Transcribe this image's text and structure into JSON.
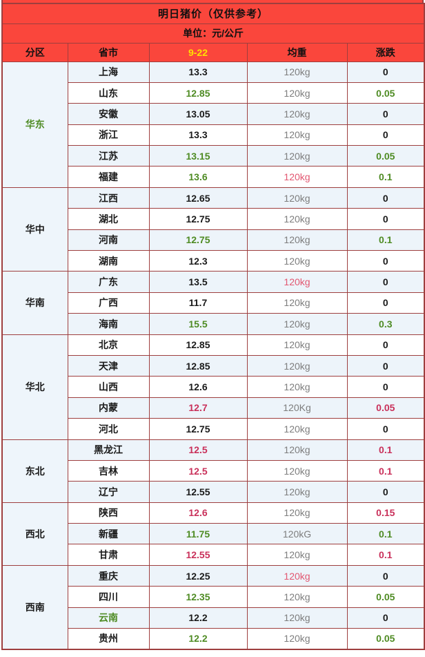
{
  "colors": {
    "header_bg": "#fa463c",
    "border": "#9e3e3e",
    "title_text": "#111111",
    "date_text_yellow": "#ffe100",
    "green_text": "#4e8b23",
    "red_text": "#c9305a",
    "pink_text": "#e25670",
    "gray_text": "#7d7d7d",
    "row_alt_bg": "#edf4fa",
    "row_bg": "#ffffff"
  },
  "chart_data": {
    "type": "table",
    "title": "明日猪价（仅供参考）",
    "subtitle": "单位：元/公斤",
    "columns": [
      "分区",
      "省市",
      "9-22",
      "均重",
      "涨跌"
    ],
    "regions": [
      {
        "name": "华东",
        "name_color": "green",
        "rows": [
          {
            "province": "上海",
            "province_color": "black",
            "price": "13.3",
            "price_color": "black",
            "weight": "120kg",
            "weight_color": "gray",
            "change": "0",
            "change_color": "black"
          },
          {
            "province": "山东",
            "province_color": "black",
            "price": "12.85",
            "price_color": "green",
            "weight": "120kg",
            "weight_color": "gray",
            "change": "0.05",
            "change_color": "green"
          },
          {
            "province": "安徽",
            "province_color": "black",
            "price": "13.05",
            "price_color": "black",
            "weight": "120kg",
            "weight_color": "gray",
            "change": "0",
            "change_color": "black"
          },
          {
            "province": "浙江",
            "province_color": "black",
            "price": "13.3",
            "price_color": "black",
            "weight": "120kg",
            "weight_color": "gray",
            "change": "0",
            "change_color": "black"
          },
          {
            "province": "江苏",
            "province_color": "black",
            "price": "13.15",
            "price_color": "green",
            "weight": "120kg",
            "weight_color": "gray",
            "change": "0.05",
            "change_color": "green"
          },
          {
            "province": "福建",
            "province_color": "black",
            "price": "13.6",
            "price_color": "green",
            "weight": "120kg",
            "weight_color": "pink",
            "change": "0.1",
            "change_color": "green"
          }
        ]
      },
      {
        "name": "华中",
        "name_color": "black",
        "rows": [
          {
            "province": "江西",
            "province_color": "black",
            "price": "12.65",
            "price_color": "black",
            "weight": "120kg",
            "weight_color": "gray",
            "change": "0",
            "change_color": "black"
          },
          {
            "province": "湖北",
            "province_color": "black",
            "price": "12.75",
            "price_color": "black",
            "weight": "120kg",
            "weight_color": "gray",
            "change": "0",
            "change_color": "black"
          },
          {
            "province": "河南",
            "province_color": "black",
            "price": "12.75",
            "price_color": "green",
            "weight": "120kg",
            "weight_color": "gray",
            "change": "0.1",
            "change_color": "green"
          },
          {
            "province": "湖南",
            "province_color": "black",
            "price": "12.3",
            "price_color": "black",
            "weight": "120kg",
            "weight_color": "gray",
            "change": "0",
            "change_color": "black"
          }
        ]
      },
      {
        "name": "华南",
        "name_color": "black",
        "rows": [
          {
            "province": "广东",
            "province_color": "black",
            "price": "13.5",
            "price_color": "black",
            "weight": "120kg",
            "weight_color": "pink",
            "change": "0",
            "change_color": "black"
          },
          {
            "province": "广西",
            "province_color": "black",
            "price": "11.7",
            "price_color": "black",
            "weight": "120kg",
            "weight_color": "gray",
            "change": "0",
            "change_color": "black"
          },
          {
            "province": "海南",
            "province_color": "black",
            "price": "15.5",
            "price_color": "green",
            "weight": "120kg",
            "weight_color": "gray",
            "change": "0.3",
            "change_color": "green"
          }
        ]
      },
      {
        "name": "华北",
        "name_color": "black",
        "rows": [
          {
            "province": "北京",
            "province_color": "black",
            "price": "12.85",
            "price_color": "black",
            "weight": "120kg",
            "weight_color": "gray",
            "change": "0",
            "change_color": "black"
          },
          {
            "province": "天津",
            "province_color": "black",
            "price": "12.85",
            "price_color": "black",
            "weight": "120kg",
            "weight_color": "gray",
            "change": "0",
            "change_color": "black"
          },
          {
            "province": "山西",
            "province_color": "black",
            "price": "12.6",
            "price_color": "black",
            "weight": "120kg",
            "weight_color": "gray",
            "change": "0",
            "change_color": "black"
          },
          {
            "province": "内蒙",
            "province_color": "black",
            "price": "12.7",
            "price_color": "red",
            "weight": "120Kg",
            "weight_color": "gray",
            "change": "0.05",
            "change_color": "red"
          },
          {
            "province": "河北",
            "province_color": "black",
            "price": "12.75",
            "price_color": "black",
            "weight": "120kg",
            "weight_color": "gray",
            "change": "0",
            "change_color": "black"
          }
        ]
      },
      {
        "name": "东北",
        "name_color": "black",
        "rows": [
          {
            "province": "黑龙江",
            "province_color": "black",
            "price": "12.5",
            "price_color": "red",
            "weight": "120kg",
            "weight_color": "gray",
            "change": "0.1",
            "change_color": "red"
          },
          {
            "province": "吉林",
            "province_color": "black",
            "price": "12.5",
            "price_color": "red",
            "weight": "120kg",
            "weight_color": "gray",
            "change": "0.1",
            "change_color": "red"
          },
          {
            "province": "辽宁",
            "province_color": "black",
            "price": "12.55",
            "price_color": "black",
            "weight": "120kg",
            "weight_color": "gray",
            "change": "0",
            "change_color": "black"
          }
        ]
      },
      {
        "name": "西北",
        "name_color": "black",
        "rows": [
          {
            "province": "陕西",
            "province_color": "black",
            "price": "12.6",
            "price_color": "red",
            "weight": "120kg",
            "weight_color": "gray",
            "change": "0.15",
            "change_color": "red"
          },
          {
            "province": "新疆",
            "province_color": "black",
            "price": "11.75",
            "price_color": "green",
            "weight": "120kG",
            "weight_color": "gray",
            "change": "0.1",
            "change_color": "green"
          },
          {
            "province": "甘肃",
            "province_color": "black",
            "price": "12.55",
            "price_color": "red",
            "weight": "120kg",
            "weight_color": "gray",
            "change": "0.1",
            "change_color": "red"
          }
        ]
      },
      {
        "name": "西南",
        "name_color": "black",
        "rows": [
          {
            "province": "重庆",
            "province_color": "black",
            "price": "12.25",
            "price_color": "black",
            "weight": "120kg",
            "weight_color": "pink",
            "change": "0",
            "change_color": "black"
          },
          {
            "province": "四川",
            "province_color": "black",
            "price": "12.35",
            "price_color": "green",
            "weight": "120kg",
            "weight_color": "gray",
            "change": "0.05",
            "change_color": "green"
          },
          {
            "province": "云南",
            "province_color": "green",
            "price": "12.2",
            "price_color": "black",
            "weight": "120kg",
            "weight_color": "gray",
            "change": "0",
            "change_color": "black"
          },
          {
            "province": "贵州",
            "province_color": "black",
            "price": "12.2",
            "price_color": "green",
            "weight": "120kg",
            "weight_color": "gray",
            "change": "0.05",
            "change_color": "green"
          }
        ]
      }
    ]
  }
}
